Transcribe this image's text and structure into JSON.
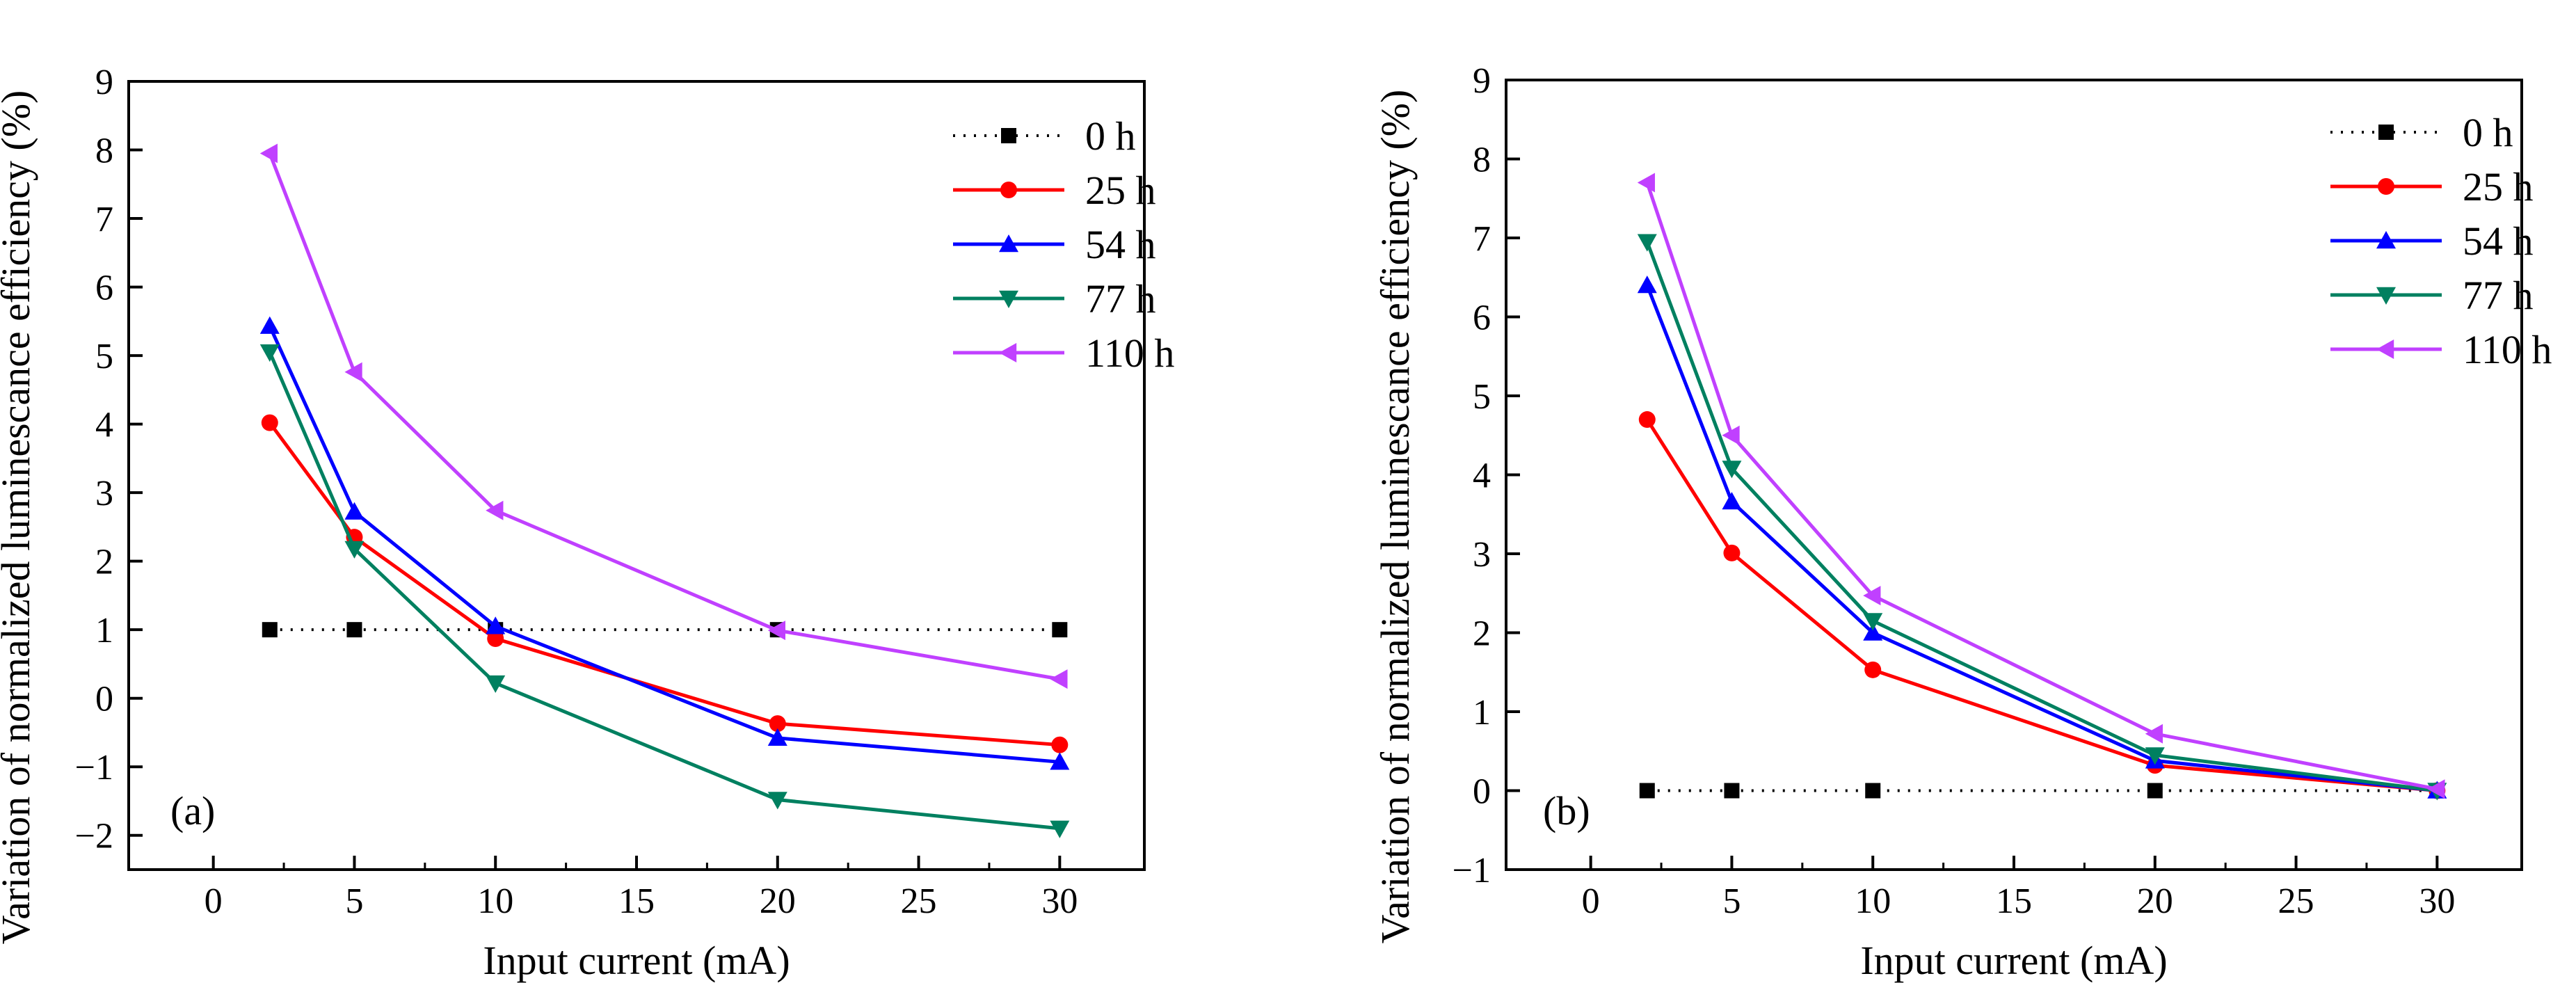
{
  "chart_data": [
    {
      "type": "line",
      "panel_label": "(a)",
      "xlabel": "Input current (mA)",
      "ylabel": "Variation of normalized luminescance efficiency (%)",
      "xlim": [
        -3,
        33
      ],
      "ylim": [
        -2.5,
        9
      ],
      "xticks": [
        0,
        5,
        10,
        15,
        20,
        25,
        30
      ],
      "yticks": [
        -2,
        -1,
        0,
        1,
        2,
        3,
        4,
        5,
        6,
        7,
        8,
        9
      ],
      "legend_position": "top-right",
      "grid": false,
      "series": [
        {
          "name": "0 h",
          "color": "#000000",
          "marker": "square",
          "dotted": true,
          "x": [
            2,
            5,
            10,
            20,
            30
          ],
          "y": [
            1.0,
            1.0,
            1.0,
            1.0,
            1.0
          ]
        },
        {
          "name": "25 h",
          "color": "#ff0000",
          "marker": "circle",
          "x": [
            2,
            5,
            10,
            20,
            30
          ],
          "y": [
            4.02,
            2.35,
            0.87,
            -0.37,
            -0.68
          ]
        },
        {
          "name": "54 h",
          "color": "#0000ff",
          "marker": "triangle-up",
          "x": [
            2,
            5,
            10,
            20,
            30
          ],
          "y": [
            5.43,
            2.72,
            1.05,
            -0.58,
            -0.93
          ]
        },
        {
          "name": "77 h",
          "color": "#008060",
          "marker": "triangle-down",
          "x": [
            2,
            5,
            10,
            20,
            30
          ],
          "y": [
            5.05,
            2.18,
            0.22,
            -1.48,
            -1.9
          ]
        },
        {
          "name": "110 h",
          "color": "#c040ff",
          "marker": "triangle-left",
          "x": [
            2,
            5,
            10,
            20,
            30
          ],
          "y": [
            7.95,
            4.76,
            2.74,
            0.99,
            0.28
          ]
        }
      ]
    },
    {
      "type": "line",
      "panel_label": "(b)",
      "xlabel": "Input current (mA)",
      "ylabel": "Variation of normalized luminescance efficiency (%)",
      "xlim": [
        -3,
        33
      ],
      "ylim": [
        -1,
        9
      ],
      "xticks": [
        0,
        5,
        10,
        15,
        20,
        25,
        30
      ],
      "yticks": [
        -1,
        0,
        1,
        2,
        3,
        4,
        5,
        6,
        7,
        8,
        9
      ],
      "legend_position": "top-right",
      "grid": false,
      "series": [
        {
          "name": "0 h",
          "color": "#000000",
          "marker": "square",
          "dotted": true,
          "x": [
            2,
            5,
            10,
            20,
            30
          ],
          "y": [
            0.0,
            0.0,
            0.0,
            0.0,
            0.0
          ]
        },
        {
          "name": "25 h",
          "color": "#ff0000",
          "marker": "circle",
          "x": [
            2,
            5,
            10,
            20,
            30
          ],
          "y": [
            4.7,
            3.01,
            1.53,
            0.32,
            0.0
          ]
        },
        {
          "name": "54 h",
          "color": "#0000ff",
          "marker": "triangle-up",
          "x": [
            2,
            5,
            10,
            20,
            30
          ],
          "y": [
            6.4,
            3.66,
            2.0,
            0.38,
            0.0
          ]
        },
        {
          "name": "77 h",
          "color": "#008060",
          "marker": "triangle-down",
          "x": [
            2,
            5,
            10,
            20,
            30
          ],
          "y": [
            6.95,
            4.08,
            2.15,
            0.45,
            0.0
          ]
        },
        {
          "name": "110 h",
          "color": "#c040ff",
          "marker": "triangle-left",
          "x": [
            2,
            5,
            10,
            20,
            30
          ],
          "y": [
            7.7,
            4.5,
            2.47,
            0.72,
            0.02
          ]
        }
      ]
    }
  ]
}
